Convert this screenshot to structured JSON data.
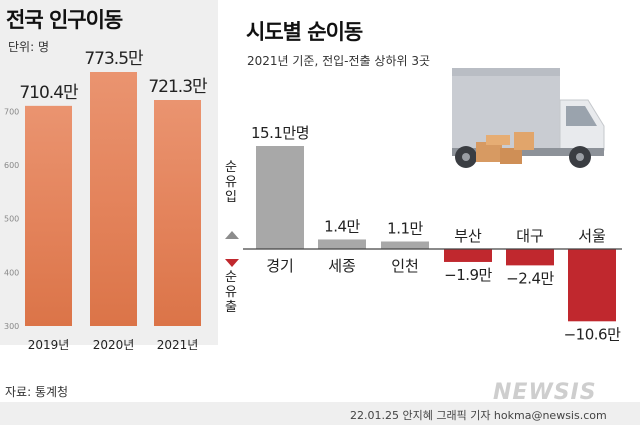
{
  "title_left": "전국 인구이동",
  "unit": "단위: 명",
  "title_right": "시도별 순이동",
  "subtitle_right": "2021년 기준, 전입-전출 상하위 3곳",
  "inflow_label": "순유입",
  "outflow_label": "순유출",
  "source": "자료: 통계청",
  "credit": "22.01.25 안지혜 그래픽 기자 hokma@newsis.com",
  "watermark": "NEWSIS",
  "colors": {
    "national_bar_top": "#e8906a",
    "national_bar_bottom": "#df7a4f",
    "inflow": "#a8a8a8",
    "outflow": "#c0282e",
    "panel_bg": "#efefef"
  },
  "illustration": "delivery-truck-with-boxes",
  "chart_data": [
    {
      "type": "bar",
      "title": "전국 인구이동",
      "unit": "만",
      "categories": [
        "2019년",
        "2020년",
        "2021년"
      ],
      "values": [
        710.4,
        773.5,
        721.3
      ],
      "data_labels": [
        "710.4만",
        "773.5만",
        "721.3만"
      ],
      "yticks": [
        300,
        400,
        500,
        600,
        700
      ],
      "ylim": [
        300,
        800
      ],
      "grid": false
    },
    {
      "type": "bar",
      "title": "시도별 순이동",
      "subtitle": "2021년 기준, 전입-전출 상하위 3곳",
      "unit": "만명",
      "categories": [
        "경기",
        "세종",
        "인천",
        "부산",
        "대구",
        "서울"
      ],
      "values": [
        15.1,
        1.4,
        1.1,
        -1.9,
        -2.4,
        -10.6
      ],
      "data_labels": [
        "15.1만명",
        "1.4만",
        "1.1만",
        "−1.9만",
        "−2.4만",
        "−10.6만"
      ],
      "ylim": [
        -10.6,
        15.1
      ],
      "grid": false
    }
  ]
}
